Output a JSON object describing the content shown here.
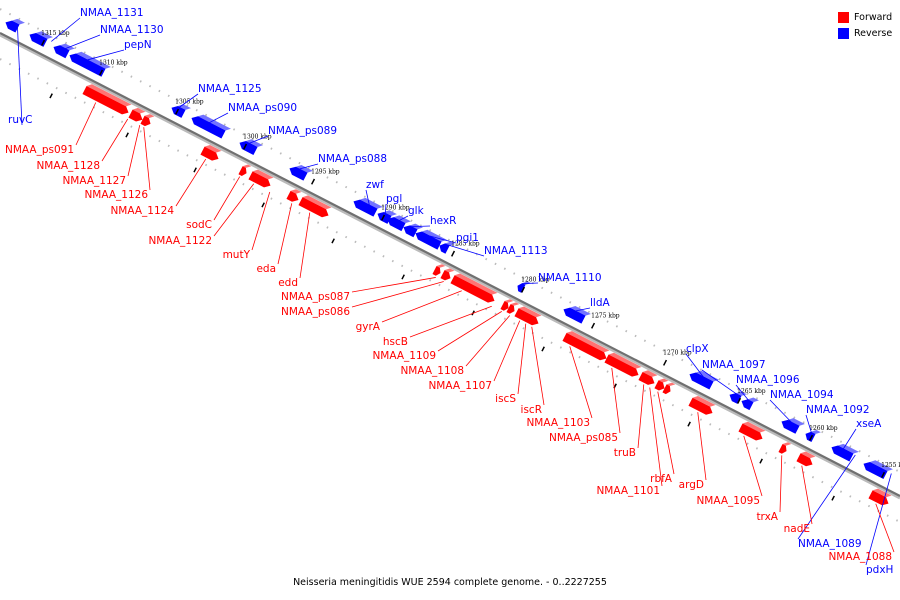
{
  "caption": "Neisseria meningitidis WUE 2594 complete genome. - 0..2227255",
  "legend": [
    {
      "label": "Forward",
      "color": "#ff0000"
    },
    {
      "label": "Reverse",
      "color": "#0000ff"
    }
  ],
  "colors": {
    "forward": "#ff0000",
    "reverse": "#0000ff",
    "backbone": "#777777"
  },
  "ticks": [
    "1315 kbp",
    "1310 kbp",
    "1305 kbp",
    "1300 kbp",
    "1295 kbp",
    "1290 kbp",
    "1285 kbp",
    "1280 kbp",
    "1275 kbp",
    "1270 kbp",
    "1265 kbp",
    "1260 kbp",
    "1255 kbp"
  ],
  "reverse_labels": [
    "NMAA_1131",
    "NMAA_1130",
    "pepN",
    "ruvC",
    "NMAA_1125",
    "NMAA_ps090",
    "NMAA_ps089",
    "NMAA_ps088",
    "zwf",
    "pgl",
    "glk",
    "hexR",
    "pgi1",
    "NMAA_1113",
    "NMAA_1110",
    "lldA",
    "clpX",
    "NMAA_1097",
    "NMAA_1096",
    "NMAA_1094",
    "NMAA_1092",
    "xseA",
    "NMAA_1089",
    "pdxH"
  ],
  "forward_labels": [
    "NMAA_ps091",
    "NMAA_1128",
    "NMAA_1127",
    "NMAA_1126",
    "NMAA_1124",
    "sodC",
    "NMAA_1122",
    "mutY",
    "eda",
    "edd",
    "NMAA_ps087",
    "NMAA_ps086",
    "gyrA",
    "hscB",
    "NMAA_1109",
    "NMAA_1108",
    "NMAA_1107",
    "iscS",
    "iscR",
    "NMAA_1103",
    "NMAA_ps085",
    "truB",
    "NMAA_1101",
    "rbfA",
    "argD",
    "NMAA_1095",
    "trxA",
    "nadE",
    "NMAA_1088"
  ]
}
